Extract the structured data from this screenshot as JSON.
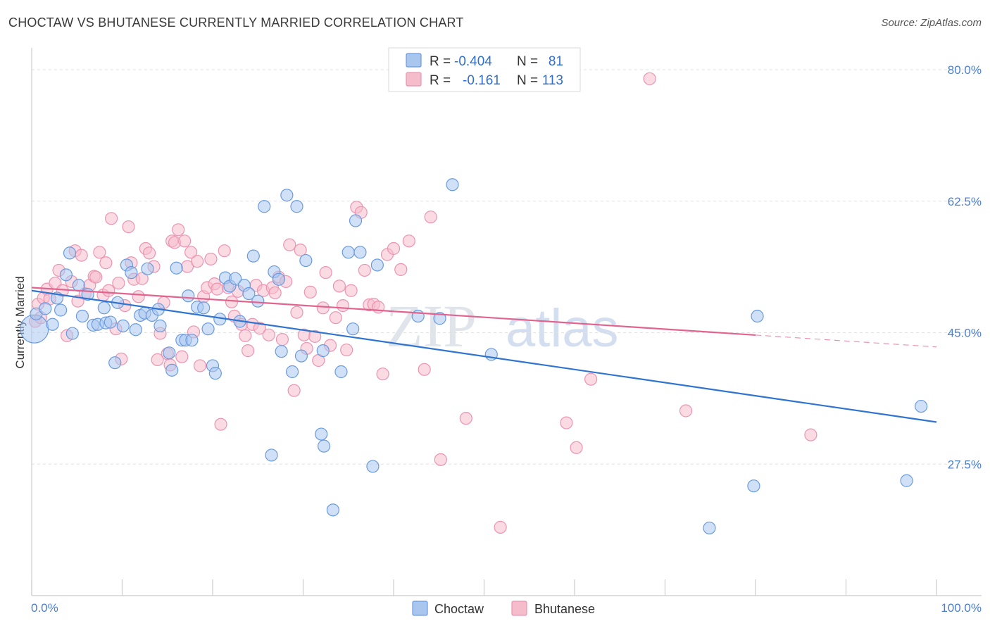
{
  "header": {
    "title": "CHOCTAW VS BHUTANESE CURRENTLY MARRIED CORRELATION CHART",
    "source": "Source: ZipAtlas.com"
  },
  "watermark": {
    "zip": "ZIP",
    "atlas": "atlas"
  },
  "colors": {
    "choctaw_fill": "#a9c6ee",
    "choctaw_stroke": "#6a9be0",
    "choctaw_line": "#2f74d0",
    "bhutanese_fill": "#f5bccc",
    "bhutanese_stroke": "#ec94b1",
    "bhutanese_line": "#e2638e",
    "tick_text": "#4a7fd0"
  },
  "stats_legend": [
    {
      "series": "Choctaw",
      "r_label": "R =",
      "r_value": "-0.404",
      "n_label": "N =",
      "n_value": "81"
    },
    {
      "series": "Bhutanese",
      "r_label": "R =",
      "r_value": "-0.161",
      "n_label": "N =",
      "n_value": "113"
    }
  ],
  "chart_data": {
    "type": "scatter",
    "title": "CHOCTAW VS BHUTANESE CURRENTLY MARRIED CORRELATION CHART",
    "xlabel": "",
    "ylabel": "Currently Married",
    "xlim": [
      0,
      100
    ],
    "ylim": [
      10,
      83
    ],
    "x_tick_labels": [
      "0.0%",
      "100.0%"
    ],
    "y_ticks": [
      {
        "value": 27.5,
        "label": "27.5%"
      },
      {
        "value": 45.0,
        "label": "45.0%"
      },
      {
        "value": 62.5,
        "label": "62.5%"
      },
      {
        "value": 80.0,
        "label": "80.0%"
      }
    ],
    "legend": [
      "Choctaw",
      "Bhutanese"
    ],
    "series": [
      {
        "name": "Choctaw",
        "trend": {
          "x0": 0,
          "y0": 50.6,
          "x1": 100,
          "y1": 33.1,
          "solid_until": 100
        },
        "points": [
          [
            0.3,
            45.5,
            "big"
          ],
          [
            0.5,
            47.5
          ],
          [
            1.5,
            48.2
          ],
          [
            2.3,
            46.1
          ],
          [
            2.8,
            49.6
          ],
          [
            3.2,
            48.0
          ],
          [
            3.8,
            52.7
          ],
          [
            4.2,
            55.6
          ],
          [
            4.5,
            44.9
          ],
          [
            5.2,
            51.3
          ],
          [
            5.6,
            47.2
          ],
          [
            6.2,
            50.1
          ],
          [
            6.8,
            46.0
          ],
          [
            7.3,
            46.1
          ],
          [
            8.0,
            48.3
          ],
          [
            8.2,
            46.3
          ],
          [
            8.7,
            46.4
          ],
          [
            9.2,
            41.0
          ],
          [
            9.5,
            49.0
          ],
          [
            10.1,
            45.9
          ],
          [
            10.5,
            54.0
          ],
          [
            11.0,
            53.0
          ],
          [
            11.5,
            45.4
          ],
          [
            12.0,
            47.3
          ],
          [
            12.5,
            47.6
          ],
          [
            12.8,
            53.5
          ],
          [
            13.3,
            47.3
          ],
          [
            14.0,
            48.1
          ],
          [
            14.2,
            45.9
          ],
          [
            15.2,
            42.3
          ],
          [
            15.5,
            40.0
          ],
          [
            16.0,
            53.6
          ],
          [
            16.6,
            44.0
          ],
          [
            17.0,
            44.0
          ],
          [
            17.3,
            49.9
          ],
          [
            17.7,
            44.0
          ],
          [
            18.3,
            48.4
          ],
          [
            19.0,
            48.3
          ],
          [
            19.5,
            45.5
          ],
          [
            20.0,
            40.6
          ],
          [
            20.3,
            39.6
          ],
          [
            20.8,
            46.8
          ],
          [
            21.4,
            52.3
          ],
          [
            21.9,
            51.2
          ],
          [
            22.5,
            52.2
          ],
          [
            23.0,
            46.5
          ],
          [
            23.5,
            51.3
          ],
          [
            24.0,
            50.2
          ],
          [
            24.5,
            55.2
          ],
          [
            25.0,
            49.2
          ],
          [
            25.7,
            61.8
          ],
          [
            26.5,
            28.7
          ],
          [
            26.8,
            53.1
          ],
          [
            27.3,
            52.1
          ],
          [
            27.6,
            42.5
          ],
          [
            28.2,
            63.3
          ],
          [
            28.8,
            39.8
          ],
          [
            29.3,
            61.8
          ],
          [
            29.8,
            41.9
          ],
          [
            30.3,
            54.6
          ],
          [
            32.0,
            31.5
          ],
          [
            32.2,
            42.6
          ],
          [
            32.3,
            29.9
          ],
          [
            33.3,
            21.4
          ],
          [
            34.2,
            39.8
          ],
          [
            35.0,
            55.7
          ],
          [
            35.5,
            45.5
          ],
          [
            35.8,
            59.9
          ],
          [
            36.3,
            55.7
          ],
          [
            37.7,
            27.2
          ],
          [
            38.2,
            54.0
          ],
          [
            42.7,
            47.2
          ],
          [
            45.1,
            46.9
          ],
          [
            46.5,
            64.7
          ],
          [
            50.8,
            42.1
          ],
          [
            74.9,
            19.0
          ],
          [
            79.8,
            24.6
          ],
          [
            80.2,
            47.2
          ],
          [
            96.7,
            25.3
          ],
          [
            98.3,
            35.2
          ]
        ]
      },
      {
        "name": "Bhutanese",
        "trend": {
          "x0": 0,
          "y0": 51.0,
          "x1": 100,
          "y1": 43.1,
          "solid_until": 80
        },
        "points": [
          [
            0.4,
            46.5
          ],
          [
            0.7,
            48.8
          ],
          [
            1.0,
            47.0
          ],
          [
            1.3,
            49.6
          ],
          [
            1.7,
            50.8
          ],
          [
            2.0,
            49.5
          ],
          [
            2.6,
            51.6
          ],
          [
            3.0,
            53.3
          ],
          [
            3.4,
            50.6
          ],
          [
            3.9,
            44.6
          ],
          [
            4.4,
            51.8
          ],
          [
            4.8,
            55.9
          ],
          [
            5.1,
            49.2
          ],
          [
            5.5,
            55.3
          ],
          [
            5.9,
            50.2
          ],
          [
            6.4,
            51.3
          ],
          [
            6.9,
            52.5
          ],
          [
            7.1,
            52.4
          ],
          [
            7.5,
            55.7
          ],
          [
            7.9,
            50.0
          ],
          [
            8.2,
            54.3
          ],
          [
            8.5,
            50.6
          ],
          [
            8.8,
            60.2
          ],
          [
            9.3,
            45.5
          ],
          [
            9.6,
            51.6
          ],
          [
            9.9,
            41.5
          ],
          [
            10.3,
            48.6
          ],
          [
            10.7,
            59.1
          ],
          [
            11.0,
            54.3
          ],
          [
            11.3,
            52.1
          ],
          [
            11.8,
            49.8
          ],
          [
            12.2,
            52.2
          ],
          [
            12.6,
            56.2
          ],
          [
            13.0,
            55.6
          ],
          [
            13.5,
            53.8
          ],
          [
            13.9,
            41.4
          ],
          [
            14.2,
            44.9
          ],
          [
            14.6,
            49.0
          ],
          [
            15.0,
            42.2
          ],
          [
            15.3,
            40.7
          ],
          [
            15.5,
            57.2
          ],
          [
            15.8,
            57.0
          ],
          [
            16.2,
            58.7
          ],
          [
            16.6,
            41.8
          ],
          [
            16.9,
            57.2
          ],
          [
            17.2,
            53.8
          ],
          [
            17.6,
            55.7
          ],
          [
            17.9,
            45.1
          ],
          [
            18.3,
            54.5
          ],
          [
            18.6,
            40.6
          ],
          [
            19.0,
            49.8
          ],
          [
            19.4,
            51.0
          ],
          [
            19.8,
            54.8
          ],
          [
            20.2,
            51.5
          ],
          [
            20.5,
            50.8
          ],
          [
            20.9,
            32.8
          ],
          [
            21.3,
            55.9
          ],
          [
            21.7,
            51.0
          ],
          [
            22.1,
            49.1
          ],
          [
            22.4,
            47.2
          ],
          [
            22.8,
            50.5
          ],
          [
            23.2,
            46.1
          ],
          [
            23.6,
            44.6
          ],
          [
            23.9,
            42.6
          ],
          [
            24.4,
            46.1
          ],
          [
            24.8,
            51.3
          ],
          [
            25.2,
            45.6
          ],
          [
            25.6,
            50.6
          ],
          [
            26.2,
            44.7
          ],
          [
            26.6,
            51.0
          ],
          [
            26.9,
            50.3
          ],
          [
            27.3,
            52.4
          ],
          [
            27.7,
            44.1
          ],
          [
            28.1,
            51.8
          ],
          [
            28.5,
            56.7
          ],
          [
            29.0,
            37.3
          ],
          [
            29.3,
            47.7
          ],
          [
            29.7,
            56.0
          ],
          [
            30.1,
            44.7
          ],
          [
            30.4,
            42.9
          ],
          [
            30.8,
            50.4
          ],
          [
            31.3,
            44.5
          ],
          [
            31.7,
            41.3
          ],
          [
            32.2,
            48.3
          ],
          [
            32.5,
            53.0
          ],
          [
            33.0,
            43.3
          ],
          [
            33.6,
            47.0
          ],
          [
            34.0,
            51.2
          ],
          [
            34.4,
            48.6
          ],
          [
            34.8,
            42.7
          ],
          [
            35.3,
            50.6
          ],
          [
            35.9,
            61.7
          ],
          [
            36.4,
            61.0
          ],
          [
            36.8,
            53.3
          ],
          [
            37.3,
            48.7
          ],
          [
            37.8,
            48.8
          ],
          [
            38.3,
            48.4
          ],
          [
            38.8,
            39.5
          ],
          [
            39.3,
            55.4
          ],
          [
            40.0,
            56.2
          ],
          [
            40.8,
            53.4
          ],
          [
            41.7,
            57.2
          ],
          [
            43.4,
            40.1
          ],
          [
            44.1,
            60.4
          ],
          [
            45.2,
            28.1
          ],
          [
            48.0,
            33.6
          ],
          [
            51.8,
            19.1
          ],
          [
            59.1,
            33.0
          ],
          [
            60.2,
            29.7
          ],
          [
            61.8,
            38.8
          ],
          [
            68.3,
            78.8
          ],
          [
            72.3,
            34.6
          ],
          [
            86.1,
            31.4
          ]
        ]
      }
    ]
  }
}
